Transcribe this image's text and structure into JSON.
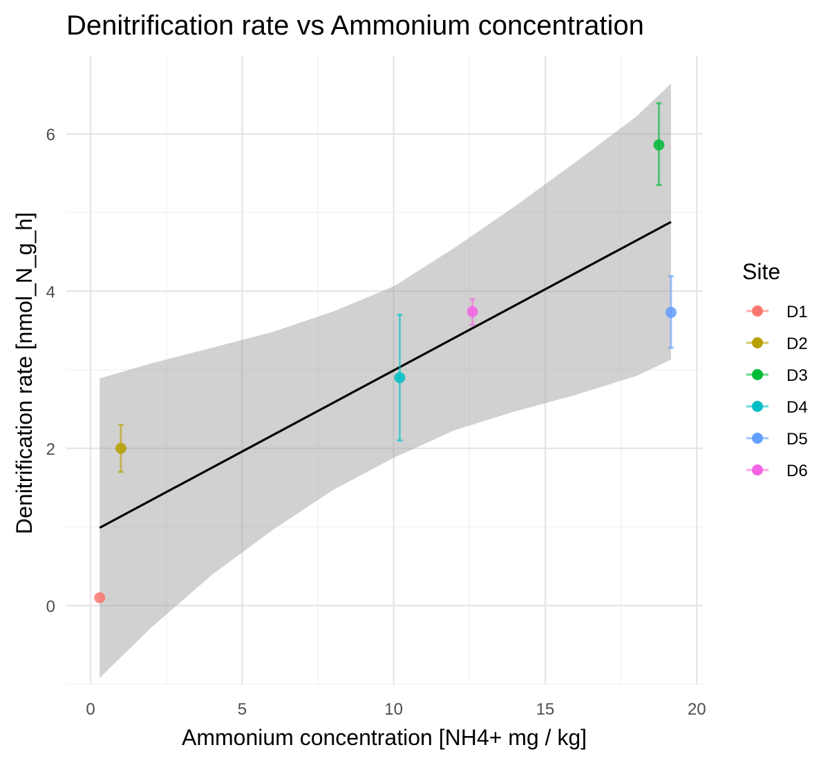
{
  "chart_data": {
    "type": "scatter",
    "title": "Denitrification rate vs Ammonium concentration",
    "xlabel": "Ammonium concentration [NH4+ mg / kg]",
    "ylabel": "Denitrification rate [nmol_N_g_h]",
    "xlim": [
      -0.8,
      20.2
    ],
    "ylim": [
      -1.0,
      7.0
    ],
    "x_ticks": [
      0,
      5,
      10,
      15,
      20
    ],
    "x_minor": [
      2.5,
      7.5,
      12.5,
      17.5
    ],
    "y_ticks": [
      0,
      2,
      4,
      6
    ],
    "y_minor": [
      -1,
      1,
      3,
      5
    ],
    "grid": true,
    "legend": {
      "title": "Site",
      "placement": "right"
    },
    "points": [
      {
        "site": "D1",
        "x": 0.3,
        "y": 0.1,
        "ymin": 0.1,
        "ymax": 0.1,
        "color": "#F8766D"
      },
      {
        "site": "D2",
        "x": 1.0,
        "y": 2.0,
        "ymin": 1.7,
        "ymax": 2.3,
        "color": "#B79F00"
      },
      {
        "site": "D3",
        "x": 18.75,
        "y": 5.86,
        "ymin": 5.35,
        "ymax": 6.39,
        "color": "#00BA38"
      },
      {
        "site": "D4",
        "x": 10.2,
        "y": 2.9,
        "ymin": 2.1,
        "ymax": 3.7,
        "color": "#00BFC4"
      },
      {
        "site": "D5",
        "x": 19.15,
        "y": 3.73,
        "ymin": 3.28,
        "ymax": 4.19,
        "color": "#619CFF"
      },
      {
        "site": "D6",
        "x": 12.6,
        "y": 3.74,
        "ymin": 3.57,
        "ymax": 3.9,
        "color": "#F564E3"
      }
    ],
    "regression": {
      "x_start": 0.3,
      "y_start": 0.99,
      "x_end": 19.15,
      "y_end": 4.88,
      "color": "#000000",
      "band_upper": [
        [
          0.3,
          2.89
        ],
        [
          2,
          3.08
        ],
        [
          4,
          3.28
        ],
        [
          6,
          3.48
        ],
        [
          8,
          3.74
        ],
        [
          10,
          4.06
        ],
        [
          12,
          4.55
        ],
        [
          14,
          5.08
        ],
        [
          16,
          5.64
        ],
        [
          18,
          6.22
        ],
        [
          19.15,
          6.64
        ]
      ],
      "band_lower": [
        [
          0.3,
          -0.92
        ],
        [
          2,
          -0.28
        ],
        [
          4,
          0.39
        ],
        [
          6,
          0.96
        ],
        [
          8,
          1.47
        ],
        [
          10,
          1.88
        ],
        [
          12,
          2.23
        ],
        [
          14,
          2.47
        ],
        [
          16,
          2.68
        ],
        [
          18,
          2.92
        ],
        [
          19.15,
          3.13
        ]
      ],
      "band_color": "#999999"
    }
  }
}
